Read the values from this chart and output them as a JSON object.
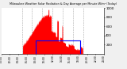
{
  "title": "Milwaukee Weather Solar Radiation & Day Average per Minute W/m² (Today)",
  "bg_color": "#f0f0f0",
  "plot_bg": "#ffffff",
  "grid_color": "#aaaaaa",
  "bar_color": "#ff0000",
  "rect_color": "#0000ff",
  "ylim": [
    0,
    1000
  ],
  "yticks": [
    200,
    400,
    600,
    800,
    1000
  ],
  "xlim": [
    0,
    1440
  ],
  "num_points": 1440,
  "daylight_start": 300,
  "daylight_end": 1140,
  "peak_minute": 650,
  "spike_minute": 660,
  "spike_value": 970,
  "day_avg_start": 480,
  "day_avg_end": 1100,
  "day_avg_value": 300,
  "grid_positions": [
    288,
    432,
    576,
    720,
    864,
    1008,
    1152
  ],
  "xtick_positions": [
    0,
    120,
    240,
    360,
    480,
    600,
    720,
    840,
    960,
    1080,
    1200,
    1320,
    1440
  ],
  "figsize": [
    1.6,
    0.87
  ],
  "dpi": 100
}
